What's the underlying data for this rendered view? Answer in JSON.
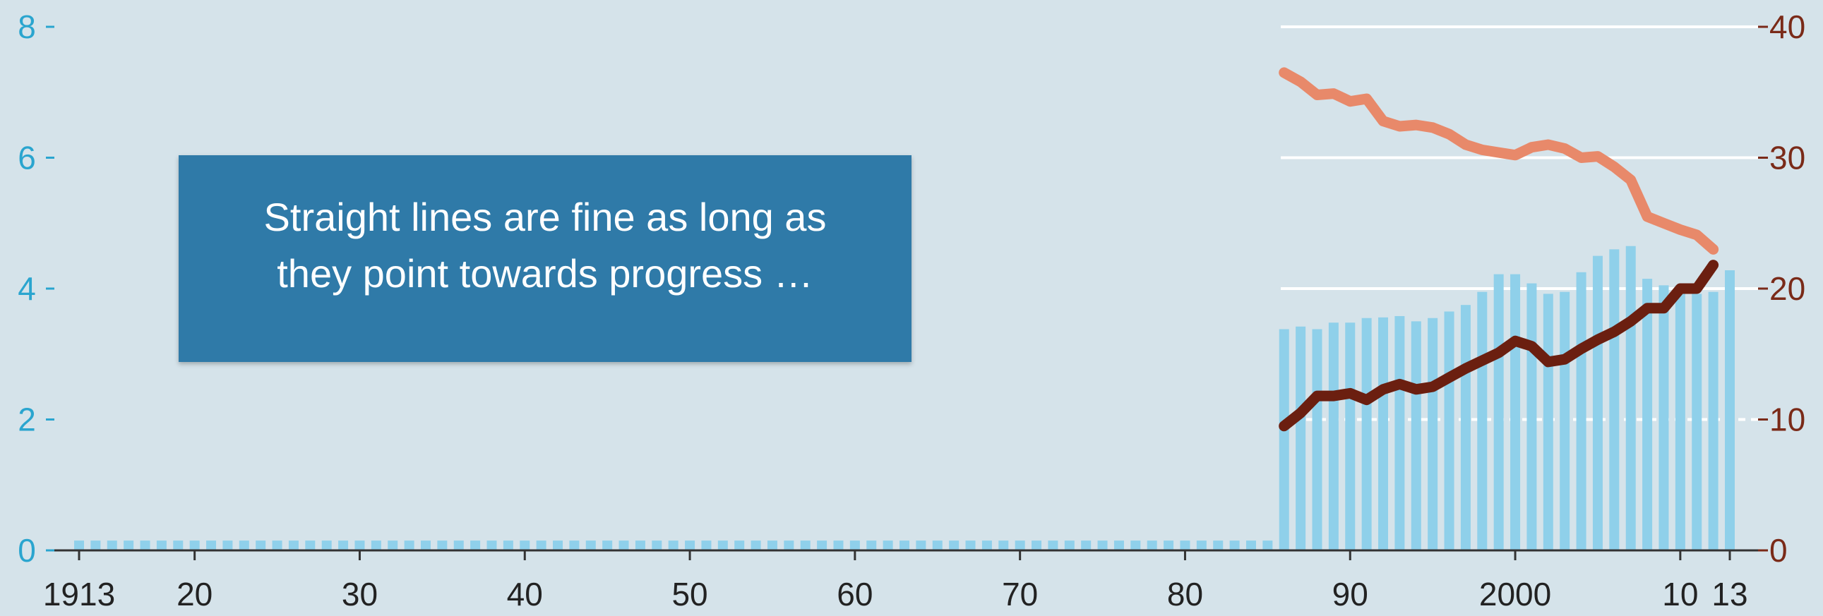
{
  "annotation": {
    "text": "Straight lines are fine as long as\nthey point towards progress …"
  },
  "colors": {
    "background": "#d5e3ea",
    "bars": "#8fd0ea",
    "line_light": "#e8896a",
    "line_dark": "#6b1f10",
    "left_axis": "#2aa5cf",
    "right_axis": "#7a2a18",
    "gridline": "#ffffff",
    "callout": "#2f7aa8"
  },
  "chart_data": {
    "type": "bar",
    "x_tick_labels": [
      {
        "year": 1913,
        "label": "1913"
      },
      {
        "year": 1920,
        "label": "20"
      },
      {
        "year": 1930,
        "label": "30"
      },
      {
        "year": 1940,
        "label": "40"
      },
      {
        "year": 1950,
        "label": "50"
      },
      {
        "year": 1960,
        "label": "60"
      },
      {
        "year": 1970,
        "label": "70"
      },
      {
        "year": 1980,
        "label": "80"
      },
      {
        "year": 1990,
        "label": "90"
      },
      {
        "year": 2000,
        "label": "2000"
      },
      {
        "year": 2010,
        "label": "10"
      },
      {
        "year": 2013,
        "label": "13"
      }
    ],
    "xlim": [
      1913,
      2013
    ],
    "left_axis": {
      "ticks": [
        "0",
        "2",
        "4",
        "6",
        "8"
      ],
      "ylim": [
        0,
        8
      ]
    },
    "right_axis": {
      "ticks": [
        "0",
        "10",
        "20",
        "30",
        "40"
      ],
      "ylim": [
        0,
        40
      ]
    },
    "grid": "horizontal, right portion only",
    "bars": {
      "axis": "left",
      "early_years": [
        1913,
        1985
      ],
      "early_value": 0.15,
      "years": [
        1986,
        1987,
        1988,
        1989,
        1990,
        1991,
        1992,
        1993,
        1994,
        1995,
        1996,
        1997,
        1998,
        1999,
        2000,
        2001,
        2002,
        2003,
        2004,
        2005,
        2006,
        2007,
        2008,
        2009,
        2010,
        2011,
        2012,
        2013
      ],
      "values": [
        3.38,
        3.42,
        3.38,
        3.48,
        3.48,
        3.55,
        3.56,
        3.58,
        3.5,
        3.55,
        3.65,
        3.75,
        3.95,
        4.22,
        4.22,
        4.08,
        3.92,
        3.95,
        4.25,
        4.5,
        4.6,
        4.65,
        4.15,
        4.05,
        4.05,
        3.92,
        3.95,
        4.28
      ]
    },
    "series": [
      {
        "axis": "right",
        "color": "light",
        "years": [
          1986,
          1987,
          1988,
          1989,
          1990,
          1991,
          1992,
          1993,
          1994,
          1995,
          1996,
          1997,
          1998,
          1999,
          2000,
          2001,
          2002,
          2003,
          2004,
          2005,
          2006,
          2007,
          2008,
          2009,
          2010,
          2011,
          2012
        ],
        "values": [
          36.5,
          35.8,
          34.8,
          34.9,
          34.3,
          34.5,
          32.8,
          32.4,
          32.5,
          32.3,
          31.8,
          31.0,
          30.6,
          30.4,
          30.2,
          30.8,
          31.0,
          30.7,
          30.0,
          30.1,
          29.3,
          28.3,
          25.5,
          25.0,
          24.5,
          24.1,
          23.0
        ]
      },
      {
        "axis": "right",
        "color": "dark",
        "years": [
          1986,
          1987,
          1988,
          1989,
          1990,
          1991,
          1992,
          1993,
          1994,
          1995,
          1996,
          1997,
          1998,
          1999,
          2000,
          2001,
          2002,
          2003,
          2004,
          2005,
          2006,
          2007,
          2008,
          2009,
          2010,
          2011,
          2012
        ],
        "values": [
          9.5,
          10.5,
          11.8,
          11.8,
          12.0,
          11.5,
          12.3,
          12.7,
          12.3,
          12.5,
          13.2,
          13.9,
          14.5,
          15.1,
          16.0,
          15.6,
          14.4,
          14.6,
          15.4,
          16.1,
          16.7,
          17.5,
          18.5,
          18.5,
          20.0,
          20.0,
          21.8
        ]
      }
    ]
  }
}
